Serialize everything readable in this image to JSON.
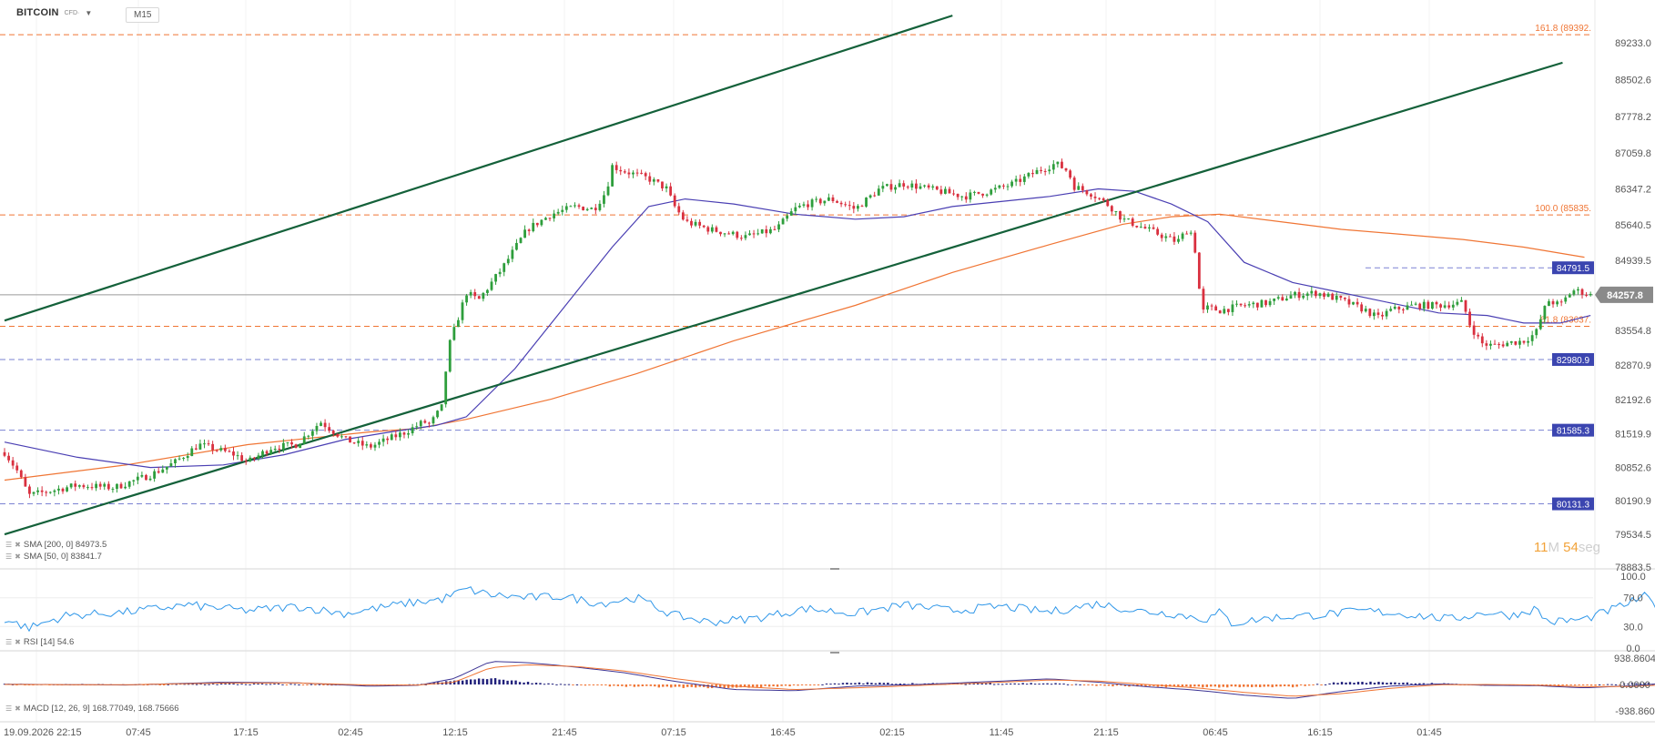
{
  "header": {
    "symbol": "BITCOIN",
    "symbol_sub": "CFD·",
    "timeframe": "M15"
  },
  "countdown": {
    "minutes": "11",
    "minutes_unit": "M",
    "seconds": "54",
    "seconds_unit": "seg"
  },
  "legends": {
    "sma200": "SMA [200, 0] 84973.5",
    "sma50": "SMA [50, 0] 83841.7",
    "rsi": "RSI [14] 54.6",
    "macd": "MACD [12, 26, 9] 168.77049, 168.75666"
  },
  "colors": {
    "up": "#2e9e3c",
    "down": "#d9303f",
    "sma50": "#4a3fb3",
    "sma200": "#f07534",
    "trend": "#14613a",
    "fib": "#f07534",
    "hline": "#5a63c8",
    "rsi": "#2f97e9",
    "macd_line": "#3c3494",
    "macd_signal": "#f07534"
  },
  "chart_data": {
    "type": "candlestick",
    "instrument": "BITCOIN",
    "timeframe": "M15",
    "y_ticks": [
      "89233.0",
      "88502.6",
      "87778.2",
      "87059.8",
      "86347.2",
      "85640.5",
      "84939.5",
      "84257.8",
      "83554.8",
      "82870.9",
      "82192.6",
      "81519.9",
      "80852.6",
      "80190.9",
      "79534.5",
      "78883.5"
    ],
    "ylim": [
      78883.5,
      89900
    ],
    "last_price": "84257.8",
    "x_ticks": [
      "19.09.2026 22:15",
      "07:45",
      "17:15",
      "02:45",
      "12:15",
      "21:45",
      "07:15",
      "16:45",
      "02:15",
      "11:45",
      "21:15",
      "06:45",
      "16:15",
      "01:45"
    ],
    "price_keypoints": [
      [
        0,
        81150
      ],
      [
        0.01,
        80800
      ],
      [
        0.02,
        80300
      ],
      [
        0.03,
        80350
      ],
      [
        0.06,
        80500
      ],
      [
        0.09,
        80450
      ],
      [
        0.12,
        80700
      ],
      [
        0.14,
        80950
      ],
      [
        0.16,
        81300
      ],
      [
        0.19,
        81100
      ],
      [
        0.2,
        80950
      ],
      [
        0.22,
        81250
      ],
      [
        0.24,
        81300
      ],
      [
        0.26,
        81750
      ],
      [
        0.28,
        81400
      ],
      [
        0.3,
        81250
      ],
      [
        0.33,
        81550
      ],
      [
        0.345,
        81750
      ],
      [
        0.35,
        81700
      ],
      [
        0.36,
        82050
      ],
      [
        0.365,
        83200
      ],
      [
        0.38,
        84300
      ],
      [
        0.39,
        84150
      ],
      [
        0.41,
        84800
      ],
      [
        0.43,
        85550
      ],
      [
        0.45,
        85850
      ],
      [
        0.47,
        86000
      ],
      [
        0.485,
        85950
      ],
      [
        0.495,
        86300
      ],
      [
        0.5,
        86800
      ],
      [
        0.51,
        86700
      ],
      [
        0.53,
        86550
      ],
      [
        0.545,
        86350
      ],
      [
        0.55,
        86050
      ],
      [
        0.56,
        85700
      ],
      [
        0.58,
        85550
      ],
      [
        0.61,
        85400
      ],
      [
        0.635,
        85550
      ],
      [
        0.65,
        85950
      ],
      [
        0.66,
        86050
      ],
      [
        0.68,
        86150
      ],
      [
        0.7,
        85950
      ],
      [
        0.72,
        86350
      ],
      [
        0.74,
        86450
      ],
      [
        0.76,
        86350
      ],
      [
        0.79,
        86200
      ],
      [
        0.81,
        86300
      ],
      [
        0.83,
        86450
      ],
      [
        0.85,
        86700
      ],
      [
        0.865,
        86850
      ],
      [
        0.875,
        86700
      ],
      [
        0.88,
        86400
      ],
      [
        0.895,
        86250
      ],
      [
        0.91,
        86000
      ],
      [
        0.92,
        85750
      ],
      [
        0.935,
        85600
      ],
      [
        0.95,
        85450
      ],
      [
        0.965,
        85300
      ],
      [
        0.975,
        85600
      ],
      [
        0.98,
        85100
      ],
      [
        0.985,
        83900
      ],
      [
        0.99,
        84000
      ],
      [
        1.0,
        83950
      ],
      [
        1.02,
        84050
      ],
      [
        1.04,
        84100
      ],
      [
        1.06,
        84250
      ],
      [
        1.08,
        84300
      ],
      [
        1.1,
        84150
      ],
      [
        1.12,
        83950
      ],
      [
        1.13,
        83800
      ],
      [
        1.14,
        83950
      ],
      [
        1.16,
        84050
      ],
      [
        1.18,
        84050
      ],
      [
        1.2,
        84100
      ],
      [
        1.205,
        83700
      ],
      [
        1.215,
        83300
      ],
      [
        1.225,
        83250
      ],
      [
        1.235,
        83300
      ],
      [
        1.25,
        83350
      ],
      [
        1.26,
        83500
      ],
      [
        1.265,
        83850
      ],
      [
        1.27,
        84150
      ],
      [
        1.28,
        84050
      ],
      [
        1.29,
        84350
      ],
      [
        1.3,
        84300
      ],
      [
        1.305,
        84250
      ]
    ],
    "series": [
      {
        "name": "SMA [200, 0]",
        "value_label": "84973.5",
        "keypoints": [
          [
            0,
            80600
          ],
          [
            0.1,
            80900
          ],
          [
            0.2,
            81300
          ],
          [
            0.3,
            81550
          ],
          [
            0.34,
            81620
          ],
          [
            0.38,
            81800
          ],
          [
            0.45,
            82200
          ],
          [
            0.52,
            82700
          ],
          [
            0.6,
            83350
          ],
          [
            0.7,
            84050
          ],
          [
            0.78,
            84700
          ],
          [
            0.86,
            85250
          ],
          [
            0.92,
            85650
          ],
          [
            0.96,
            85800
          ],
          [
            1.0,
            85850
          ],
          [
            1.05,
            85700
          ],
          [
            1.1,
            85550
          ],
          [
            1.15,
            85450
          ],
          [
            1.2,
            85350
          ],
          [
            1.25,
            85200
          ],
          [
            1.3,
            85000
          ]
        ]
      },
      {
        "name": "SMA [50, 0]",
        "value_label": "83841.7",
        "keypoints": [
          [
            0,
            81350
          ],
          [
            0.06,
            81050
          ],
          [
            0.12,
            80850
          ],
          [
            0.18,
            80900
          ],
          [
            0.23,
            81100
          ],
          [
            0.28,
            81400
          ],
          [
            0.32,
            81560
          ],
          [
            0.355,
            81680
          ],
          [
            0.38,
            81850
          ],
          [
            0.42,
            82800
          ],
          [
            0.46,
            84000
          ],
          [
            0.5,
            85200
          ],
          [
            0.53,
            86000
          ],
          [
            0.56,
            86150
          ],
          [
            0.6,
            86050
          ],
          [
            0.65,
            85850
          ],
          [
            0.7,
            85750
          ],
          [
            0.74,
            85800
          ],
          [
            0.78,
            86000
          ],
          [
            0.82,
            86100
          ],
          [
            0.86,
            86200
          ],
          [
            0.9,
            86350
          ],
          [
            0.93,
            86300
          ],
          [
            0.96,
            86050
          ],
          [
            0.99,
            85700
          ],
          [
            1.02,
            84900
          ],
          [
            1.06,
            84500
          ],
          [
            1.1,
            84300
          ],
          [
            1.14,
            84100
          ],
          [
            1.18,
            83900
          ],
          [
            1.22,
            83850
          ],
          [
            1.25,
            83700
          ],
          [
            1.28,
            83700
          ],
          [
            1.305,
            83850
          ]
        ]
      }
    ],
    "horizontal_levels": [
      {
        "label": "161.8 (89392.",
        "value": 89392,
        "kind": "fib"
      },
      {
        "label": "100.0 (85835.",
        "value": 85835,
        "kind": "fib"
      },
      {
        "label": "61.8 (83637.",
        "value": 83637,
        "kind": "fib"
      },
      {
        "label": "84791.5",
        "value": 84791.5,
        "kind": "level"
      },
      {
        "label": "82980.9",
        "value": 82980.9,
        "kind": "level"
      },
      {
        "label": "81585.3",
        "value": 81585.3,
        "kind": "level"
      },
      {
        "label": "80131.3",
        "value": 80131.3,
        "kind": "level"
      }
    ],
    "trend_lines": [
      {
        "from": [
          0,
          83750
        ],
        "to": [
          0.78,
          89770
        ]
      },
      {
        "from": [
          0,
          79530
        ],
        "to": [
          1.282,
          88840
        ]
      }
    ],
    "rsi": {
      "name": "RSI [14]",
      "value_label": "54.6",
      "y_ticks": [
        "100.0",
        "70.0",
        "30.0",
        "0.0"
      ],
      "ylim": [
        0,
        100
      ],
      "keypoints": [
        [
          0,
          40
        ],
        [
          0.02,
          28
        ],
        [
          0.05,
          45
        ],
        [
          0.1,
          50
        ],
        [
          0.15,
          60
        ],
        [
          0.2,
          52
        ],
        [
          0.24,
          58
        ],
        [
          0.28,
          48
        ],
        [
          0.33,
          62
        ],
        [
          0.36,
          68
        ],
        [
          0.38,
          82
        ],
        [
          0.4,
          74
        ],
        [
          0.43,
          70
        ],
        [
          0.46,
          72
        ],
        [
          0.49,
          62
        ],
        [
          0.52,
          70
        ],
        [
          0.55,
          46
        ],
        [
          0.58,
          36
        ],
        [
          0.62,
          42
        ],
        [
          0.66,
          55
        ],
        [
          0.7,
          48
        ],
        [
          0.74,
          60
        ],
        [
          0.78,
          52
        ],
        [
          0.82,
          58
        ],
        [
          0.86,
          50
        ],
        [
          0.9,
          62
        ],
        [
          0.93,
          52
        ],
        [
          0.96,
          48
        ],
        [
          0.99,
          40
        ],
        [
          1.0,
          50
        ],
        [
          1.01,
          34
        ],
        [
          1.04,
          42
        ],
        [
          1.08,
          46
        ],
        [
          1.12,
          52
        ],
        [
          1.16,
          46
        ],
        [
          1.19,
          40
        ],
        [
          1.22,
          50
        ],
        [
          1.24,
          45
        ],
        [
          1.26,
          55
        ],
        [
          1.27,
          36
        ],
        [
          1.3,
          40
        ],
        [
          1.32,
          52
        ],
        [
          1.34,
          65
        ],
        [
          1.35,
          72
        ],
        [
          1.36,
          56
        ],
        [
          1.38,
          64
        ],
        [
          1.4,
          58
        ],
        [
          1.41,
          56
        ]
      ]
    },
    "macd": {
      "name": "MACD [12, 26, 9]",
      "value_label": "168.77049, 168.75666",
      "y_ticks": [
        "938.8604",
        "0.0000",
        "-938.860"
      ],
      "ylim": [
        -938.86,
        938.8604
      ],
      "macd_keypoints": [
        [
          0,
          10
        ],
        [
          0.1,
          -20
        ],
        [
          0.18,
          80
        ],
        [
          0.24,
          60
        ],
        [
          0.3,
          -60
        ],
        [
          0.34,
          -30
        ],
        [
          0.37,
          210
        ],
        [
          0.4,
          820
        ],
        [
          0.43,
          780
        ],
        [
          0.47,
          620
        ],
        [
          0.51,
          420
        ],
        [
          0.55,
          120
        ],
        [
          0.6,
          -180
        ],
        [
          0.65,
          -220
        ],
        [
          0.7,
          -60
        ],
        [
          0.76,
          10
        ],
        [
          0.82,
          120
        ],
        [
          0.86,
          200
        ],
        [
          0.9,
          80
        ],
        [
          0.94,
          -80
        ],
        [
          0.98,
          -200
        ],
        [
          1.02,
          -380
        ],
        [
          1.06,
          -500
        ],
        [
          1.1,
          -250
        ],
        [
          1.14,
          -60
        ],
        [
          1.18,
          20
        ],
        [
          1.22,
          -30
        ],
        [
          1.26,
          -40
        ],
        [
          1.3,
          -120
        ],
        [
          1.34,
          -40
        ],
        [
          1.38,
          80
        ],
        [
          1.41,
          169
        ]
      ],
      "signal_keypoints": [
        [
          0,
          0
        ],
        [
          0.1,
          -10
        ],
        [
          0.18,
          50
        ],
        [
          0.24,
          55
        ],
        [
          0.3,
          -20
        ],
        [
          0.34,
          -20
        ],
        [
          0.37,
          80
        ],
        [
          0.4,
          600
        ],
        [
          0.43,
          700
        ],
        [
          0.47,
          640
        ],
        [
          0.51,
          480
        ],
        [
          0.55,
          220
        ],
        [
          0.6,
          -60
        ],
        [
          0.65,
          -180
        ],
        [
          0.7,
          -120
        ],
        [
          0.76,
          -20
        ],
        [
          0.82,
          80
        ],
        [
          0.86,
          160
        ],
        [
          0.9,
          120
        ],
        [
          0.94,
          0
        ],
        [
          0.98,
          -120
        ],
        [
          1.02,
          -280
        ],
        [
          1.06,
          -420
        ],
        [
          1.1,
          -330
        ],
        [
          1.14,
          -140
        ],
        [
          1.18,
          -10
        ],
        [
          1.22,
          0
        ],
        [
          1.26,
          -20
        ],
        [
          1.3,
          -80
        ],
        [
          1.34,
          -70
        ],
        [
          1.38,
          20
        ],
        [
          1.41,
          169
        ]
      ]
    }
  }
}
